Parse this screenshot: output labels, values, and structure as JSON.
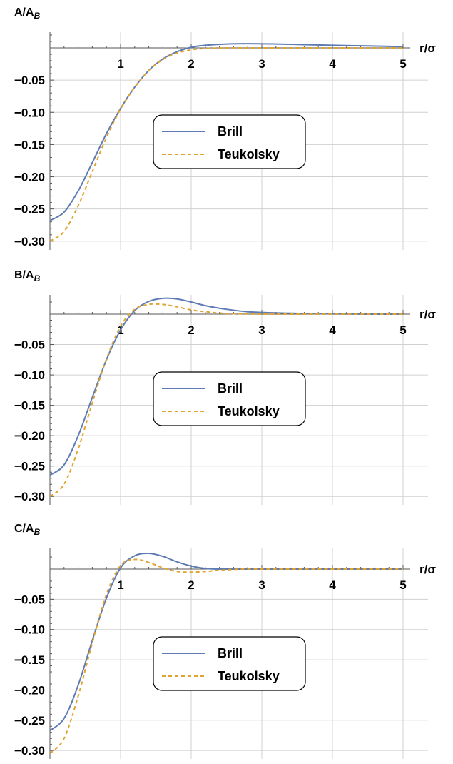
{
  "colors": {
    "brill": "#5E7BB3",
    "teukolsky": "#E0A32E",
    "grid": "#D0D0D0",
    "axis": "#555555"
  },
  "chart_data": [
    {
      "type": "line",
      "ylabel": "A/A",
      "ylabel_sub": "B",
      "xlabel": "r/σ",
      "xlim": [
        0,
        5.05
      ],
      "ylim": [
        -0.31,
        0.015
      ],
      "x_ticks": [
        "1",
        "2",
        "3",
        "4",
        "5"
      ],
      "y_ticks": [
        "-0.05",
        "-0.10",
        "-0.15",
        "-0.20",
        "-0.25",
        "-0.30"
      ],
      "grid": true,
      "legend_position": "center",
      "series": [
        {
          "name": "Brill",
          "style": "solid",
          "x": [
            0,
            0.2,
            0.4,
            0.6,
            0.8,
            1.0,
            1.2,
            1.4,
            1.6,
            1.8,
            2.0,
            2.2,
            2.5,
            2.8,
            3.2,
            3.6,
            4.0,
            4.5,
            5.0
          ],
          "y": [
            -0.268,
            -0.255,
            -0.222,
            -0.178,
            -0.133,
            -0.094,
            -0.061,
            -0.035,
            -0.017,
            -0.006,
            0.001,
            0.004,
            0.006,
            0.0065,
            0.006,
            0.005,
            0.004,
            0.003,
            0.002
          ]
        },
        {
          "name": "Teukolsky",
          "style": "dashed",
          "x": [
            0,
            0.2,
            0.4,
            0.6,
            0.8,
            1.0,
            1.2,
            1.4,
            1.6,
            1.8,
            2.0,
            2.2,
            2.5,
            3.0,
            3.5,
            4.0,
            5.0
          ],
          "y": [
            -0.3,
            -0.285,
            -0.245,
            -0.192,
            -0.139,
            -0.095,
            -0.061,
            -0.035,
            -0.018,
            -0.008,
            -0.003,
            -0.001,
            0.0,
            0.0,
            0.0,
            0.0,
            0.0
          ]
        }
      ]
    },
    {
      "type": "line",
      "ylabel": "B/A",
      "ylabel_sub": "B",
      "xlabel": "r/σ",
      "xlim": [
        0,
        5.05
      ],
      "ylim": [
        -0.31,
        0.03
      ],
      "x_ticks": [
        "1",
        "2",
        "3",
        "4",
        "5"
      ],
      "y_ticks": [
        "-0.05",
        "-0.10",
        "-0.15",
        "-0.20",
        "-0.25",
        "-0.30"
      ],
      "grid": true,
      "legend_position": "center",
      "series": [
        {
          "name": "Brill",
          "style": "solid",
          "x": [
            0,
            0.2,
            0.4,
            0.6,
            0.8,
            1.0,
            1.2,
            1.4,
            1.6,
            1.8,
            2.0,
            2.2,
            2.5,
            2.8,
            3.2,
            3.6,
            4.0,
            4.5,
            5.0
          ],
          "y": [
            -0.265,
            -0.248,
            -0.2,
            -0.137,
            -0.075,
            -0.026,
            0.006,
            0.021,
            0.026,
            0.025,
            0.02,
            0.014,
            0.008,
            0.004,
            0.002,
            0.001,
            0.0005,
            0.0,
            0.0
          ]
        },
        {
          "name": "Teukolsky",
          "style": "dashed",
          "x": [
            0,
            0.2,
            0.4,
            0.6,
            0.8,
            1.0,
            1.2,
            1.4,
            1.6,
            1.8,
            2.0,
            2.2,
            2.5,
            3.0,
            3.5,
            4.0,
            5.0
          ],
          "y": [
            -0.3,
            -0.28,
            -0.222,
            -0.146,
            -0.074,
            -0.02,
            0.008,
            0.016,
            0.016,
            0.012,
            0.007,
            0.004,
            0.001,
            0.0,
            0.0,
            0.0,
            0.0
          ]
        }
      ]
    },
    {
      "type": "line",
      "ylabel": "C/A",
      "ylabel_sub": "B",
      "xlabel": "r/σ",
      "xlim": [
        0,
        5.05
      ],
      "ylim": [
        -0.31,
        0.03
      ],
      "x_ticks": [
        "1",
        "2",
        "3",
        "4",
        "5"
      ],
      "y_ticks": [
        "-0.05",
        "-0.10",
        "-0.15",
        "-0.20",
        "-0.25",
        "-0.30"
      ],
      "grid": true,
      "legend_position": "center",
      "series": [
        {
          "name": "Brill",
          "style": "solid",
          "x": [
            0,
            0.2,
            0.4,
            0.6,
            0.8,
            1.0,
            1.2,
            1.4,
            1.6,
            1.8,
            2.0,
            2.2,
            2.4,
            2.7,
            3.0,
            3.5,
            4.0,
            5.0
          ],
          "y": [
            -0.267,
            -0.247,
            -0.192,
            -0.118,
            -0.048,
            0.002,
            0.022,
            0.026,
            0.021,
            0.012,
            0.005,
            0.001,
            0.0,
            0.0,
            0.0,
            0.0,
            0.0,
            0.0
          ]
        },
        {
          "name": "Teukolsky",
          "style": "dashed",
          "x": [
            0,
            0.2,
            0.4,
            0.6,
            0.8,
            1.0,
            1.2,
            1.4,
            1.6,
            1.8,
            2.0,
            2.2,
            2.4,
            2.7,
            3.0,
            3.5,
            4.0,
            5.0
          ],
          "y": [
            -0.305,
            -0.28,
            -0.21,
            -0.122,
            -0.042,
            0.006,
            0.016,
            0.011,
            0.002,
            -0.004,
            -0.005,
            -0.004,
            -0.002,
            0.0,
            0.0,
            0.0,
            0.0,
            0.0
          ]
        }
      ]
    }
  ]
}
